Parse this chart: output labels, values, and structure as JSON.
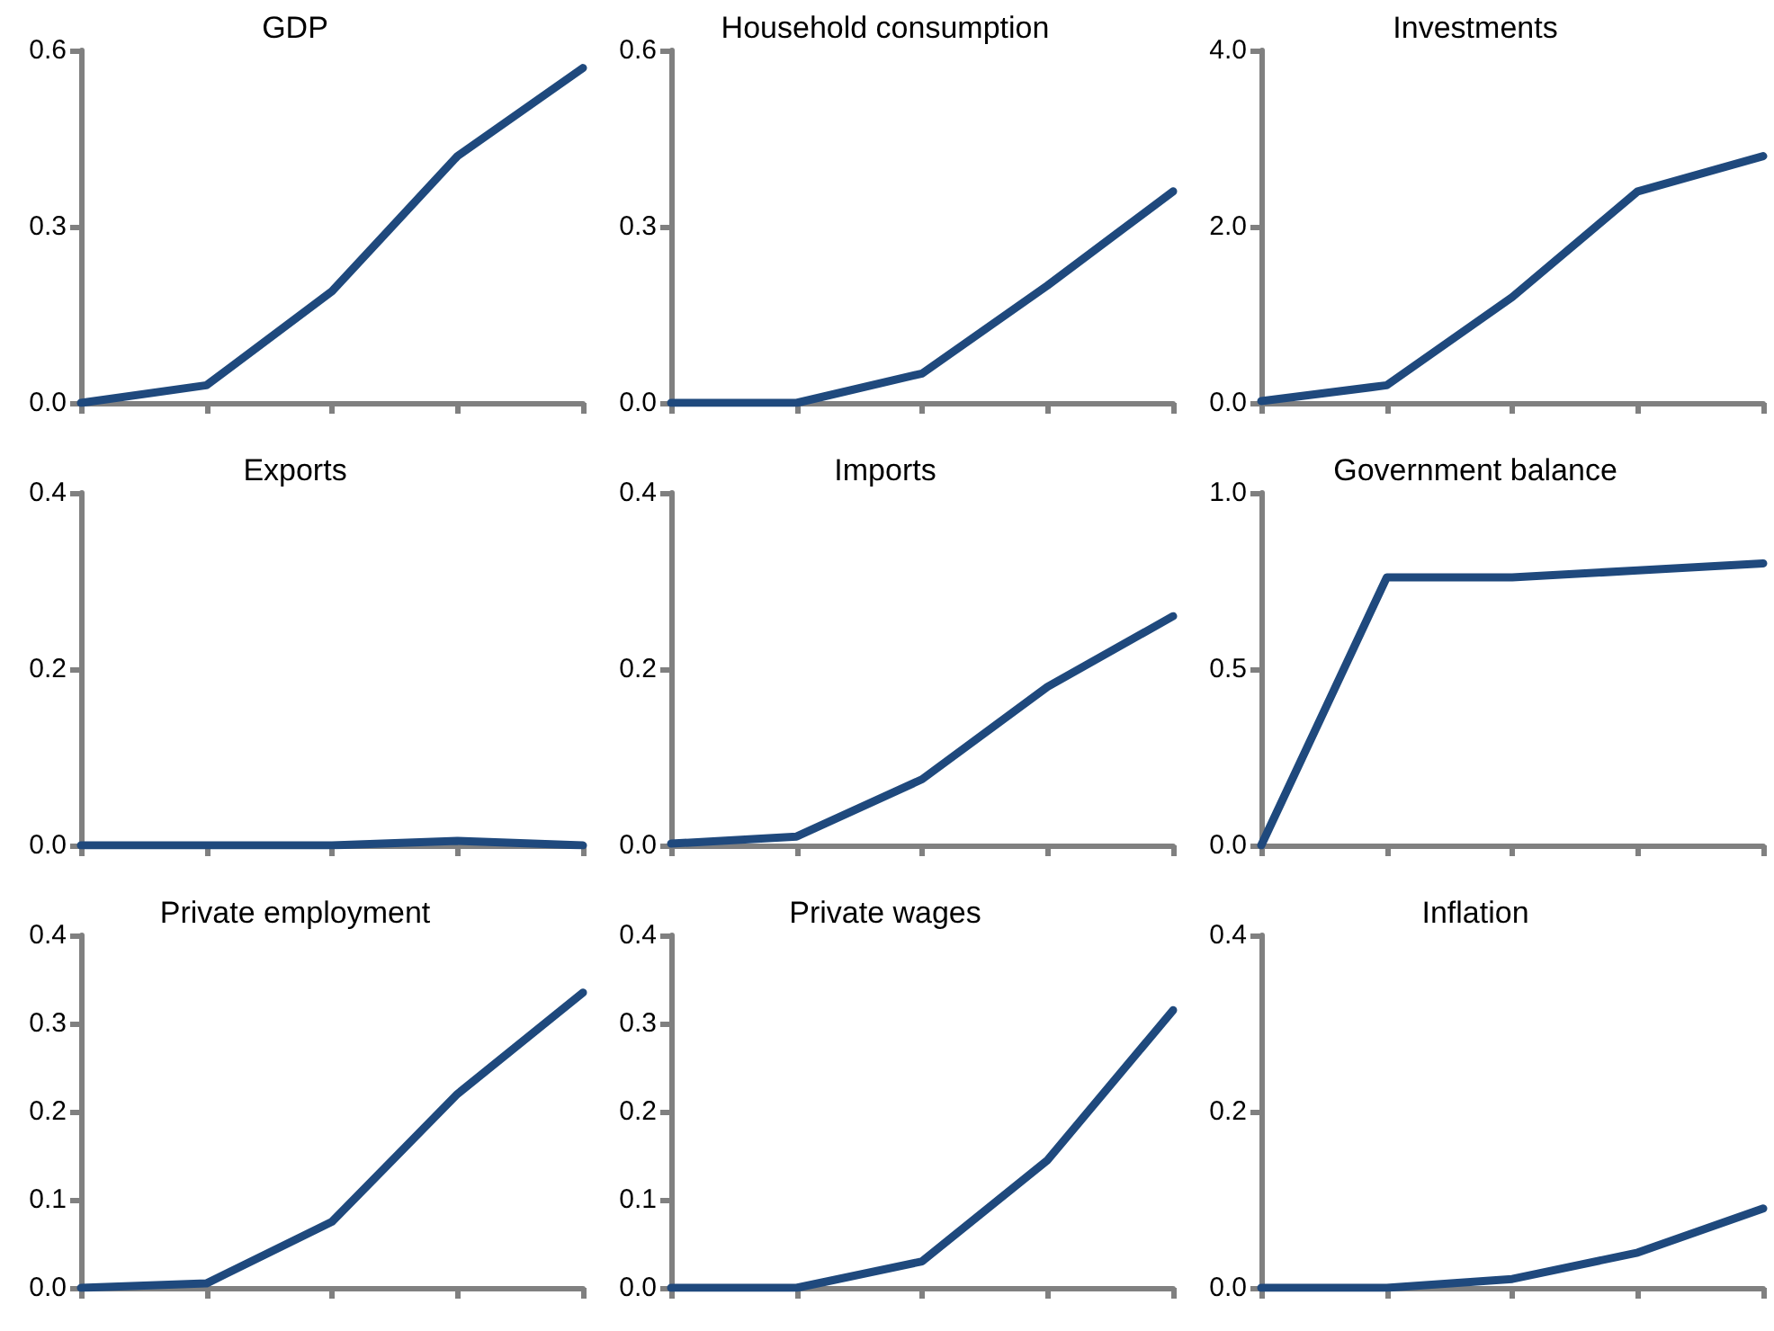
{
  "chart_data": [
    {
      "type": "line",
      "title": "GDP",
      "categories": [
        null,
        null,
        null,
        null,
        null
      ],
      "values": [
        0,
        0.03,
        0.19,
        0.42,
        0.57
      ],
      "color": "#1f497d",
      "ylim": [
        0,
        0.6
      ],
      "yticks": [
        {
          "value": 0,
          "label": "0.0"
        },
        {
          "value": 0.3,
          "label": "0.3"
        },
        {
          "value": 0.6,
          "label": "0.6"
        }
      ],
      "grid": false,
      "tick_labels": "y"
    },
    {
      "type": "line",
      "title": "Household consumption",
      "categories": [
        null,
        null,
        null,
        null,
        null
      ],
      "values": [
        0,
        0,
        0.05,
        0.2,
        0.36
      ],
      "color": "#1f497d",
      "ylim": [
        0,
        0.6
      ],
      "yticks": [
        {
          "value": 0,
          "label": "0.0"
        },
        {
          "value": 0.3,
          "label": "0.3"
        },
        {
          "value": 0.6,
          "label": "0.6"
        }
      ],
      "grid": false,
      "tick_labels": "y"
    },
    {
      "type": "line",
      "title": "Investments",
      "categories": [
        null,
        null,
        null,
        null,
        null
      ],
      "values": [
        0.02,
        0.2,
        1.2,
        2.4,
        2.8
      ],
      "color": "#1f497d",
      "ylim": [
        0,
        4
      ],
      "yticks": [
        {
          "value": 0,
          "label": "0.0"
        },
        {
          "value": 2,
          "label": "2.0"
        },
        {
          "value": 4,
          "label": "4.0"
        }
      ],
      "grid": false,
      "tick_labels": "y"
    },
    {
      "type": "line",
      "title": "Exports",
      "categories": [
        null,
        null,
        null,
        null,
        null
      ],
      "values": [
        0,
        0,
        0,
        0.005,
        0
      ],
      "color": "#1f497d",
      "ylim": [
        0,
        0.4
      ],
      "yticks": [
        {
          "value": 0,
          "label": "0.0"
        },
        {
          "value": 0.2,
          "label": "0.2"
        },
        {
          "value": 0.4,
          "label": "0.4"
        }
      ],
      "grid": false,
      "tick_labels": "y"
    },
    {
      "type": "line",
      "title": "Imports",
      "categories": [
        null,
        null,
        null,
        null,
        null
      ],
      "values": [
        0.002,
        0.01,
        0.075,
        0.18,
        0.26
      ],
      "color": "#1f497d",
      "ylim": [
        0,
        0.4
      ],
      "yticks": [
        {
          "value": 0,
          "label": "0.0"
        },
        {
          "value": 0.2,
          "label": "0.2"
        },
        {
          "value": 0.4,
          "label": "0.4"
        }
      ],
      "grid": false,
      "tick_labels": "y"
    },
    {
      "type": "line",
      "title": "Government balance",
      "categories": [
        null,
        null,
        null,
        null,
        null
      ],
      "values": [
        0,
        0.76,
        0.76,
        0.78,
        0.8
      ],
      "color": "#1f497d",
      "ylim": [
        0,
        1
      ],
      "yticks": [
        {
          "value": 0,
          "label": "0.0"
        },
        {
          "value": 0.5,
          "label": "0.5"
        },
        {
          "value": 1,
          "label": "1.0"
        }
      ],
      "grid": false,
      "tick_labels": "y"
    },
    {
      "type": "line",
      "title": "Private employment",
      "categories": [
        null,
        null,
        null,
        null,
        null
      ],
      "values": [
        0,
        0.005,
        0.075,
        0.22,
        0.335
      ],
      "color": "#1f497d",
      "ylim": [
        0,
        0.4
      ],
      "yticks": [
        {
          "value": 0,
          "label": "0.0"
        },
        {
          "value": 0.1,
          "label": "0.1"
        },
        {
          "value": 0.2,
          "label": "0.2"
        },
        {
          "value": 0.3,
          "label": "0.3"
        },
        {
          "value": 0.4,
          "label": "0.4"
        }
      ],
      "grid": false,
      "tick_labels": "y"
    },
    {
      "type": "line",
      "title": "Private wages",
      "categories": [
        null,
        null,
        null,
        null,
        null
      ],
      "values": [
        0,
        0,
        0.03,
        0.145,
        0.315
      ],
      "color": "#1f497d",
      "ylim": [
        0,
        0.4
      ],
      "yticks": [
        {
          "value": 0,
          "label": "0.0"
        },
        {
          "value": 0.1,
          "label": "0.1"
        },
        {
          "value": 0.2,
          "label": "0.2"
        },
        {
          "value": 0.3,
          "label": "0.3"
        },
        {
          "value": 0.4,
          "label": "0.4"
        }
      ],
      "grid": false,
      "tick_labels": "y"
    },
    {
      "type": "line",
      "title": "Inflation",
      "categories": [
        null,
        null,
        null,
        null,
        null
      ],
      "values": [
        0,
        0,
        0.01,
        0.04,
        0.09
      ],
      "color": "#1f497d",
      "ylim": [
        0,
        0.4
      ],
      "yticks": [
        {
          "value": 0,
          "label": "0.0"
        },
        {
          "value": 0.2,
          "label": "0.2"
        },
        {
          "value": 0.4,
          "label": "0.4"
        }
      ],
      "grid": false,
      "tick_labels": "y"
    }
  ]
}
